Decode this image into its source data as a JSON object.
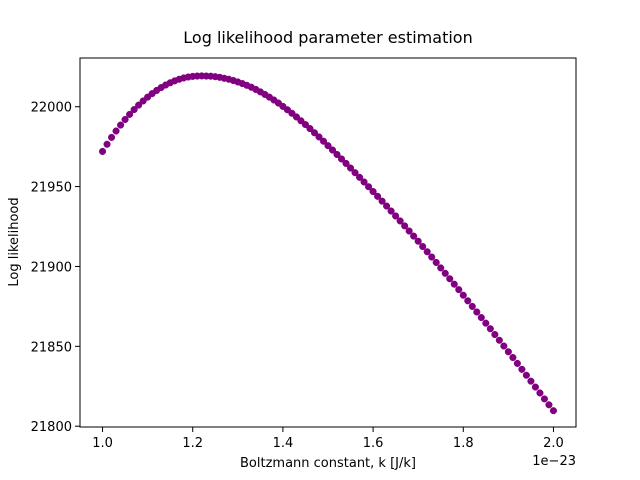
{
  "chart_data": {
    "type": "scatter",
    "title": "Log likelihood parameter estimation",
    "x_label": "Boltzmann constant, k [J/k]",
    "y_label": "Log likelihood",
    "x_offset_label": "1e−23",
    "color": "#800080",
    "xlim": [
      0.95,
      2.05
    ],
    "ylim": [
      21799.5,
      22030.5
    ],
    "xticks": [
      {
        "value": 1.0,
        "label": "1.0"
      },
      {
        "value": 1.2,
        "label": "1.2"
      },
      {
        "value": 1.4,
        "label": "1.4"
      },
      {
        "value": 1.6,
        "label": "1.6"
      },
      {
        "value": 1.8,
        "label": "1.8"
      },
      {
        "value": 2.0,
        "label": "2.0"
      }
    ],
    "yticks": [
      21800,
      21850,
      21900,
      21950,
      22000
    ],
    "x": [
      1.0,
      1.01,
      1.02,
      1.03,
      1.04,
      1.05,
      1.06,
      1.07,
      1.08,
      1.09,
      1.1,
      1.11,
      1.12,
      1.13,
      1.14,
      1.15,
      1.16,
      1.17,
      1.18,
      1.19,
      1.2,
      1.21,
      1.22,
      1.23,
      1.24,
      1.25,
      1.26,
      1.27,
      1.28,
      1.29,
      1.3,
      1.31,
      1.32,
      1.33,
      1.34,
      1.35,
      1.36,
      1.37,
      1.38,
      1.39,
      1.4,
      1.41,
      1.42,
      1.43,
      1.44,
      1.45,
      1.46,
      1.47,
      1.48,
      1.49,
      1.5,
      1.51,
      1.52,
      1.53,
      1.54,
      1.55,
      1.56,
      1.57,
      1.58,
      1.59,
      1.6,
      1.61,
      1.62,
      1.63,
      1.64,
      1.65,
      1.66,
      1.67,
      1.68,
      1.69,
      1.7,
      1.71,
      1.72,
      1.73,
      1.74,
      1.75,
      1.76,
      1.77,
      1.78,
      1.79,
      1.8,
      1.81,
      1.82,
      1.83,
      1.84,
      1.85,
      1.86,
      1.87,
      1.88,
      1.89,
      1.9,
      1.91,
      1.92,
      1.93,
      1.94,
      1.95,
      1.96,
      1.97,
      1.98,
      1.99,
      2.0
    ],
    "values": [
      21972,
      21976.5,
      21980.8,
      21984.8,
      21988.5,
      21992,
      21995.2,
      21998.2,
      22001,
      22003.6,
      22006,
      22008.2,
      22010.2,
      22012,
      22013.6,
      22015,
      22016.2,
      22017.2,
      22018,
      22018.6,
      22019,
      22019.2,
      22019.3,
      22019.2,
      22019.1,
      22018.8,
      22018.4,
      22017.8,
      22017.2,
      22016.4,
      22015.5,
      22014.5,
      22013.4,
      22012.2,
      22010.8,
      22009.3,
      22007.7,
      22006,
      22004.2,
      22002.3,
      22000.2,
      21998.1,
      21995.9,
      21993.6,
      21991.2,
      21988.8,
      21986.3,
      21983.7,
      21981.1,
      21978.4,
      21975.6,
      21972.9,
      21970.1,
      21967.3,
      21964.5,
      21961.6,
      21958.7,
      21955.8,
      21952.9,
      21949.9,
      21946.9,
      21943.9,
      21940.9,
      21937.8,
      21934.7,
      21931.6,
      21928.5,
      21925.4,
      21922.2,
      21919,
      21915.8,
      21912.5,
      21909.2,
      21905.9,
      21902.5,
      21899.1,
      21895.7,
      21892.3,
      21888.9,
      21885.5,
      21882,
      21878.5,
      21875,
      21871.5,
      21868,
      21864.5,
      21861,
      21857.4,
      21853.8,
      21850.2,
      21846.6,
      21843,
      21839.3,
      21835.6,
      21831.9,
      21828.2,
      21824.5,
      21820.8,
      21817.1,
      21813.4,
      21809.7
    ]
  }
}
